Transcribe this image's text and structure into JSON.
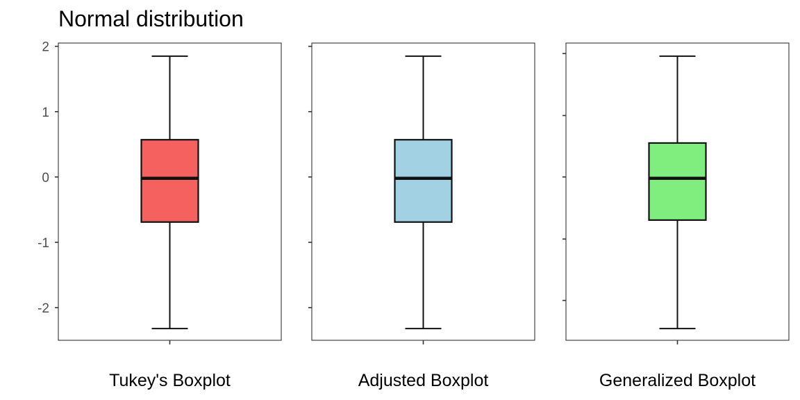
{
  "title": "Normal distribution",
  "chart_data": {
    "type": "boxplot",
    "title": "Normal distribution",
    "xlabel": "",
    "ylabel": "",
    "ylim": [
      -2.5,
      2.05
    ],
    "grid": false,
    "panels": [
      {
        "label": "Tukey's Boxplot",
        "fill": "#F5615F",
        "y_ticks": [
          -2,
          -1,
          0,
          1,
          2
        ],
        "y_tick_labels": [
          "-2",
          "-1",
          "0",
          "1",
          "2"
        ],
        "whisker_low": -2.32,
        "q1": -0.69,
        "median": -0.02,
        "q3": 0.57,
        "whisker_high": 1.85
      },
      {
        "label": "Adjusted Boxplot",
        "fill": "#A1D1E2",
        "y_ticks": [
          -2,
          -1,
          0,
          1,
          2
        ],
        "y_tick_labels": [],
        "whisker_low": -2.32,
        "q1": -0.69,
        "median": -0.02,
        "q3": 0.57,
        "whisker_high": 1.85
      },
      {
        "label": "Generalized Boxplot",
        "fill": "#80EE7E",
        "y_ticks": [
          -1.89,
          -0.95,
          0,
          0.94,
          1.89
        ],
        "y_tick_labels": [],
        "whisker_low": -2.32,
        "q1": -0.66,
        "median": -0.02,
        "q3": 0.52,
        "whisker_high": 1.85
      }
    ]
  }
}
